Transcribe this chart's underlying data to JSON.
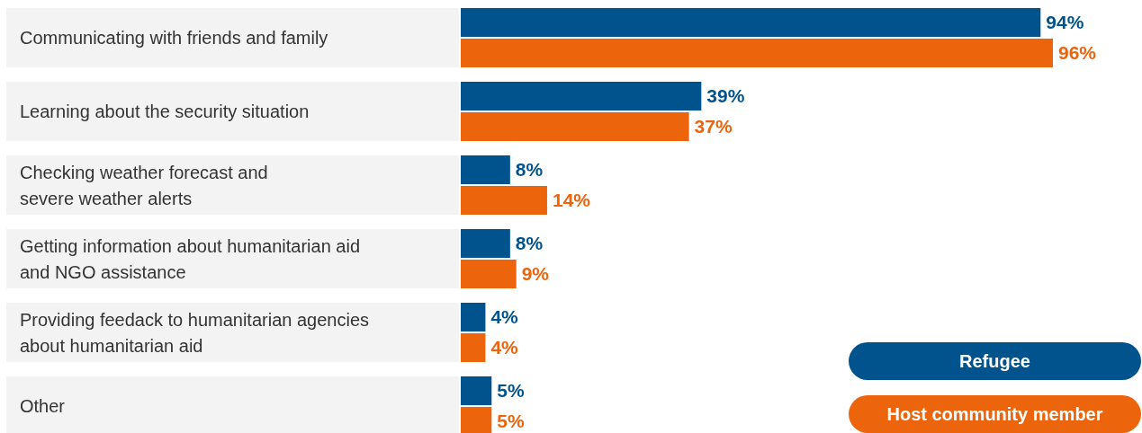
{
  "chart_data": {
    "type": "bar",
    "orientation": "horizontal",
    "categories": [
      "Communicating with friends and family",
      "Learning about the security situation",
      "Checking weather forecast and\nsevere weather alerts",
      "Getting information about humanitarian aid\nand NGO assistance",
      "Providing feedack to humanitarian agencies\nabout humanitarian aid",
      "Other"
    ],
    "series": [
      {
        "name": "Refugee",
        "color": "#00538c",
        "values": [
          94,
          39,
          8,
          8,
          4,
          5
        ],
        "value_labels": [
          "94%",
          "39%",
          "8%",
          "8%",
          "4%",
          "5%"
        ]
      },
      {
        "name": "Host community member",
        "color": "#ec640c",
        "values": [
          96,
          37,
          14,
          9,
          4,
          5
        ],
        "value_labels": [
          "96%",
          "37%",
          "14%",
          "9%",
          "4%",
          "5%"
        ]
      }
    ],
    "grid": false,
    "legend": "bottom right"
  }
}
